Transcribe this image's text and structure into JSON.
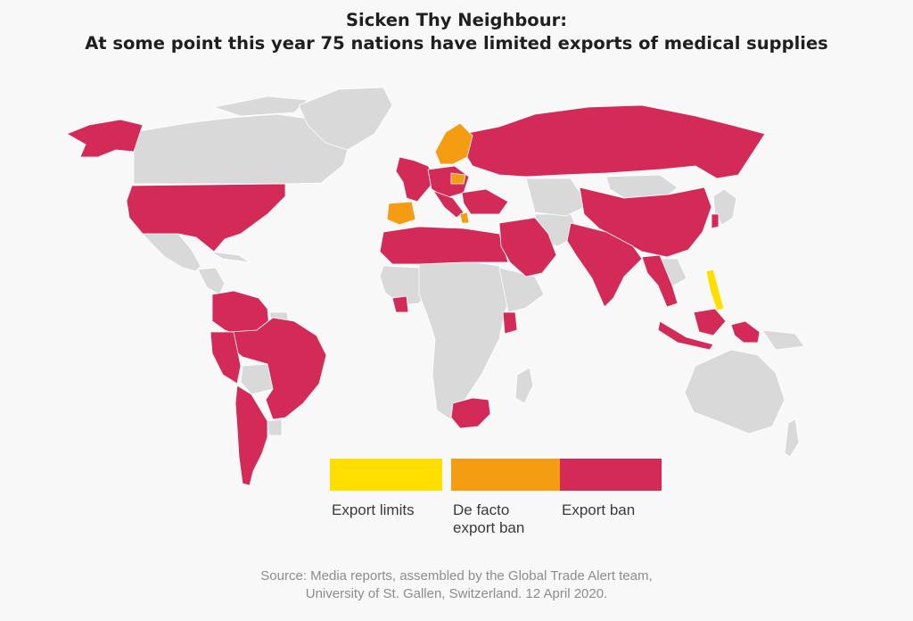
{
  "title": {
    "line1": "Sicken Thy Neighbour:",
    "line2": "At some point this year 75 nations have limited exports of medical supplies"
  },
  "colors": {
    "background": "#f8f8f8",
    "land_no_restriction": "#d9d9d9",
    "export_limits": "#ffde00",
    "de_facto_export_ban": "#f49d12",
    "export_ban": "#d42a58",
    "borders": "#ffffff"
  },
  "legend": {
    "export_limits": "Export limits",
    "de_facto_line1": "De facto",
    "de_facto_line2": "export ban",
    "export_ban": "Export ban"
  },
  "source": {
    "line1": "Source: Media reports, assembled by the Global Trade Alert team,",
    "line2": "University of St. Gallen, Switzerland. 12 April 2020."
  }
}
